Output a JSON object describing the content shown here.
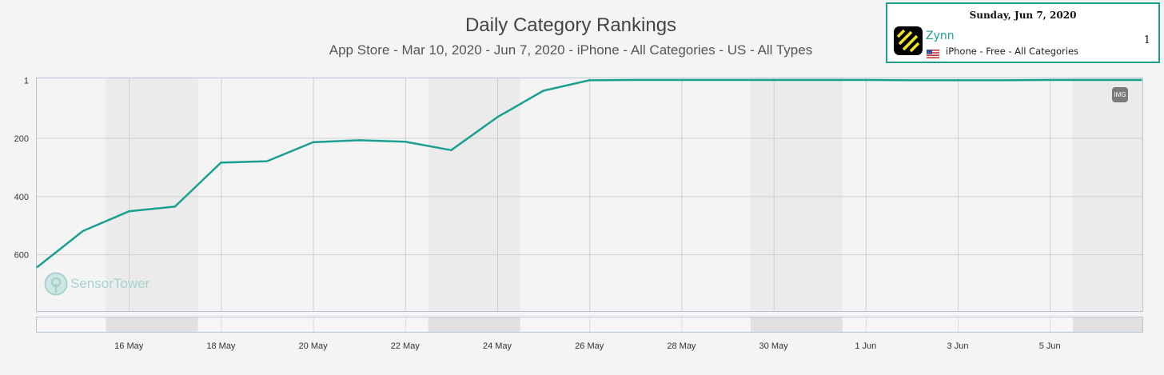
{
  "header": {
    "title": "Daily Category Rankings",
    "subtitle": "App Store - Mar 10, 2020 - Jun 7, 2020 - iPhone - All Categories - US - All Types"
  },
  "tooltip": {
    "date": "Sunday, Jun 7, 2020",
    "app_name": "Zynn",
    "meta": "iPhone - Free - All Categories",
    "rank": "1",
    "flag_icon": "us-flag-icon",
    "app_icon": "zynn-app-icon"
  },
  "badge": {
    "label": "IMG"
  },
  "watermark": {
    "text_a": "Sensor",
    "text_b": "Tower"
  },
  "colors": {
    "line": "#1ba090",
    "shade": "#ebebeb",
    "grid": "#cfcfcf",
    "navigator_shade": "#e1e1e1"
  },
  "chart_data": {
    "type": "line",
    "title": "Daily Category Rankings",
    "subtitle": "App Store - Mar 10, 2020 - Jun 7, 2020 - iPhone - All Categories - US - All Types",
    "x_ticks": [
      "16 May",
      "18 May",
      "20 May",
      "22 May",
      "24 May",
      "26 May",
      "28 May",
      "30 May",
      "1 Jun",
      "3 Jun",
      "5 Jun"
    ],
    "y_ticks": [
      "1",
      "200",
      "400",
      "600"
    ],
    "y_reversed": true,
    "x": [
      "14 May",
      "15 May",
      "16 May",
      "17 May",
      "18 May",
      "19 May",
      "20 May",
      "21 May",
      "22 May",
      "23 May",
      "24 May",
      "25 May",
      "26 May",
      "27 May",
      "28 May",
      "29 May",
      "30 May",
      "31 May",
      "1 Jun",
      "2 Jun",
      "3 Jun",
      "4 Jun",
      "5 Jun",
      "6 Jun",
      "7 Jun"
    ],
    "series": [
      {
        "values": [
          645,
          520,
          452,
          436,
          285,
          280,
          215,
          208,
          213,
          242,
          129,
          38,
          2,
          1,
          1,
          1,
          1,
          1,
          1,
          2,
          2,
          2,
          1,
          1,
          1
        ]
      }
    ],
    "weekend_shading": [
      [
        "16 May",
        "17 May"
      ],
      [
        "23 May",
        "24 May"
      ],
      [
        "30 May",
        "31 May"
      ],
      [
        "6 Jun",
        "7 Jun"
      ]
    ],
    "grid": true,
    "legend": "none"
  }
}
